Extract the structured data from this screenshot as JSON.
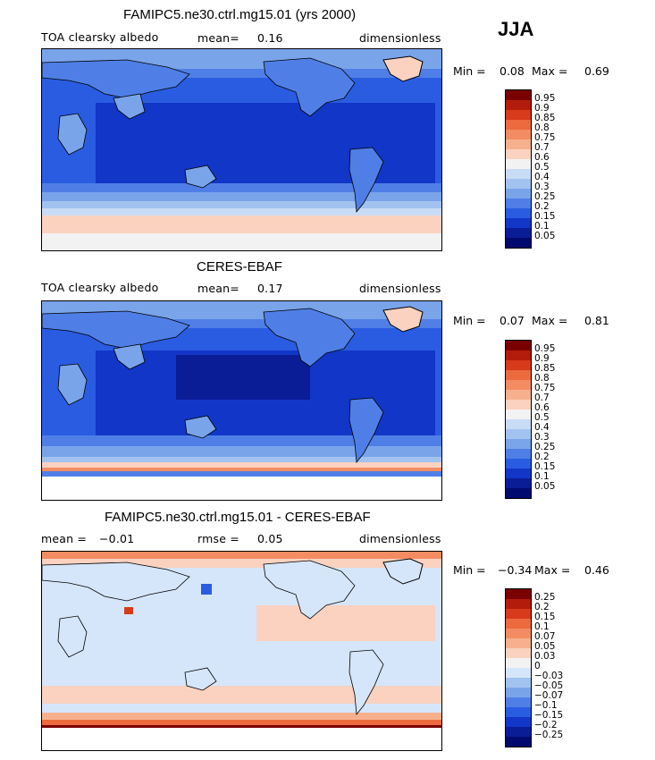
{
  "season": "JJA",
  "panels": [
    {
      "title": "FAMIPC5.ne30.ctrl.mg15.01 (yrs 2000)",
      "left_label": "TOA clearsky albedo",
      "mid_label": "mean=",
      "mid_value": "0.16",
      "right_label": "dimensionless",
      "min_label": "Min =",
      "min_value": "0.08",
      "max_label": "Max =",
      "max_value": "0.69",
      "colorbar_labels": [
        "0.95",
        "0.9",
        "0.85",
        "0.8",
        "0.75",
        "0.7",
        "0.6",
        "0.5",
        "0.4",
        "0.3",
        "0.25",
        "0.2",
        "0.15",
        "0.1",
        "0.05"
      ]
    },
    {
      "title": "CERES-EBAF",
      "left_label": "TOA clearsky albedo",
      "mid_label": "mean=",
      "mid_value": "0.17",
      "right_label": "dimensionless",
      "min_label": "Min =",
      "min_value": "0.07",
      "max_label": "Max =",
      "max_value": "0.81",
      "colorbar_labels": [
        "0.95",
        "0.9",
        "0.85",
        "0.8",
        "0.75",
        "0.7",
        "0.6",
        "0.5",
        "0.4",
        "0.3",
        "0.25",
        "0.2",
        "0.15",
        "0.1",
        "0.05"
      ]
    },
    {
      "title": "FAMIPC5.ne30.ctrl.mg15.01 - CERES-EBAF",
      "left_label": "mean =",
      "left_value": "−0.01",
      "mid_label": "rmse =",
      "mid_value": "0.05",
      "right_label": "dimensionless",
      "min_label": "Min =",
      "min_value": "−0.34",
      "max_label": "Max =",
      "max_value": "0.46",
      "colorbar_labels": [
        "0.25",
        "0.2",
        "0.15",
        "0.1",
        "0.07",
        "0.05",
        "0.03",
        "0",
        "−0.03",
        "−0.05",
        "−0.07",
        "−0.1",
        "−0.15",
        "−0.2",
        "−0.25"
      ]
    }
  ],
  "colors": {
    "abs_scale": [
      "#7a0000",
      "#b31b0a",
      "#d83a1c",
      "#ec6a3e",
      "#f38c62",
      "#f7b08e",
      "#fad2bf",
      "#f2f2f2",
      "#c9dcf6",
      "#a2c3ef",
      "#7aa4ea",
      "#4f7fe6",
      "#2a5ce2",
      "#1236c8",
      "#0a1c96",
      "#000a6e"
    ],
    "diff_scale": [
      "#7a0000",
      "#b31b0a",
      "#d83a1c",
      "#ec6a3e",
      "#f38c62",
      "#f7b08e",
      "#fad2bf",
      "#f2f2f2",
      "#d6e6fa",
      "#a2c3ef",
      "#7aa4ea",
      "#4f7fe6",
      "#2a5ce2",
      "#1236c8",
      "#0a1c96",
      "#000a6e"
    ]
  }
}
